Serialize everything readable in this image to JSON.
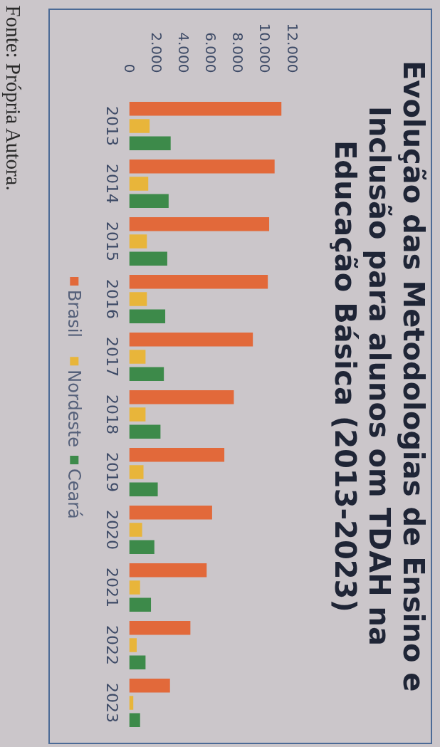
{
  "chart_data": {
    "type": "bar",
    "orientation": "horizontal",
    "title": "Evolução das Metodologias de Ensino e\nInclusão para alunos om TDAH na\nEducação Básica (2013-2023)",
    "categories": [
      "2013",
      "2014",
      "2015",
      "2016",
      "2017",
      "2018",
      "2019",
      "2020",
      "2021",
      "2022",
      "2023"
    ],
    "series": [
      {
        "name": "Brasil",
        "color": "#e2693a",
        "values": [
          11200,
          10700,
          10300,
          10200,
          9100,
          7700,
          7000,
          6100,
          5700,
          4500,
          3000
        ]
      },
      {
        "name": "Nordeste",
        "color": "#e8b53a",
        "values": [
          1500,
          1400,
          1300,
          1300,
          1200,
          1200,
          1050,
          950,
          800,
          550,
          300
        ]
      },
      {
        "name": "Ceará",
        "color": "#3d8a4a",
        "values": [
          3050,
          2900,
          2800,
          2650,
          2550,
          2300,
          2100,
          1850,
          1600,
          1200,
          800
        ]
      }
    ],
    "xlim": [
      0,
      12000
    ],
    "xticks": [
      0,
      {
        "value": 2000,
        "label": "2.000"
      },
      {
        "value": 4000,
        "label": "4.000"
      },
      {
        "value": 6000,
        "label": "6.000"
      },
      {
        "value": 8000,
        "label": "8.000"
      },
      {
        "value": 10000,
        "label": "10.000"
      },
      {
        "value": 12000,
        "label": "12.000"
      }
    ],
    "legend": "left",
    "annotations": [
      "Fonte: Própria Autora."
    ]
  }
}
